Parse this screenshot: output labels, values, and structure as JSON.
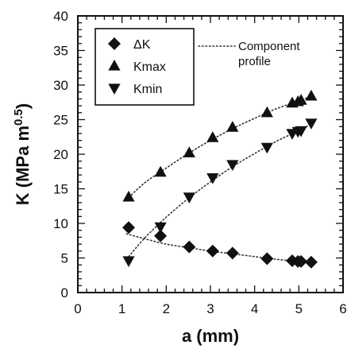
{
  "chart_data": {
    "type": "scatter",
    "xlabel": "a (mm)",
    "ylabel": "K (MPa m^0.5)",
    "xlim": [
      0,
      6
    ],
    "ylim": [
      0,
      40
    ],
    "x_ticks": [
      "0",
      "1",
      "2",
      "3",
      "4",
      "5",
      "6"
    ],
    "y_ticks": [
      "0",
      "5",
      "10",
      "15",
      "20",
      "25",
      "30",
      "35",
      "40"
    ],
    "legend_placement": "top-left",
    "series": [
      {
        "name": "ΔK",
        "marker": "diamond",
        "x": [
          1.15,
          1.87,
          2.52,
          3.05,
          3.5,
          4.28,
          4.85,
          4.98,
          5.05,
          5.28
        ],
        "y": [
          9.4,
          8.2,
          6.6,
          6.0,
          5.7,
          4.9,
          4.6,
          4.5,
          4.5,
          4.4
        ],
        "profile": {
          "x": [
            1.1,
            1.5,
            2.0,
            2.5,
            3.0,
            3.5,
            4.0,
            4.5,
            5.0,
            5.35
          ],
          "y": [
            8.5,
            7.8,
            7.0,
            6.5,
            6.0,
            5.6,
            5.2,
            4.8,
            4.5,
            4.3
          ]
        }
      },
      {
        "name": "Kmax",
        "marker": "triangle-up",
        "x": [
          1.15,
          1.87,
          2.52,
          3.05,
          3.5,
          4.28,
          4.85,
          4.98,
          5.05,
          5.28
        ],
        "y": [
          13.8,
          17.4,
          20.2,
          22.4,
          23.9,
          26.0,
          27.4,
          27.6,
          27.8,
          28.4
        ],
        "profile": {
          "x": [
            1.1,
            1.5,
            2.0,
            2.5,
            3.0,
            3.5,
            4.0,
            4.5,
            5.0,
            5.35
          ],
          "y": [
            13.4,
            15.8,
            18.0,
            20.1,
            22.0,
            23.7,
            25.2,
            26.6,
            27.7,
            28.6
          ]
        }
      },
      {
        "name": "Kmin",
        "marker": "triangle-down",
        "x": [
          1.15,
          1.87,
          2.52,
          3.05,
          3.5,
          4.28,
          4.85,
          4.98,
          5.05,
          5.28
        ],
        "y": [
          4.6,
          9.5,
          13.8,
          16.6,
          18.5,
          21.0,
          23.0,
          23.3,
          23.4,
          24.5
        ],
        "profile": {
          "x": [
            1.1,
            1.5,
            2.0,
            2.5,
            3.0,
            3.5,
            4.0,
            4.5,
            5.0,
            5.35
          ],
          "y": [
            4.8,
            7.8,
            10.9,
            13.6,
            16.0,
            18.2,
            20.1,
            21.9,
            23.4,
            24.6
          ]
        }
      }
    ],
    "annotation": {
      "line_label": "Component",
      "line_label_2": "profile"
    }
  },
  "colors": {
    "ink": "#111111",
    "profile": "#333333"
  }
}
